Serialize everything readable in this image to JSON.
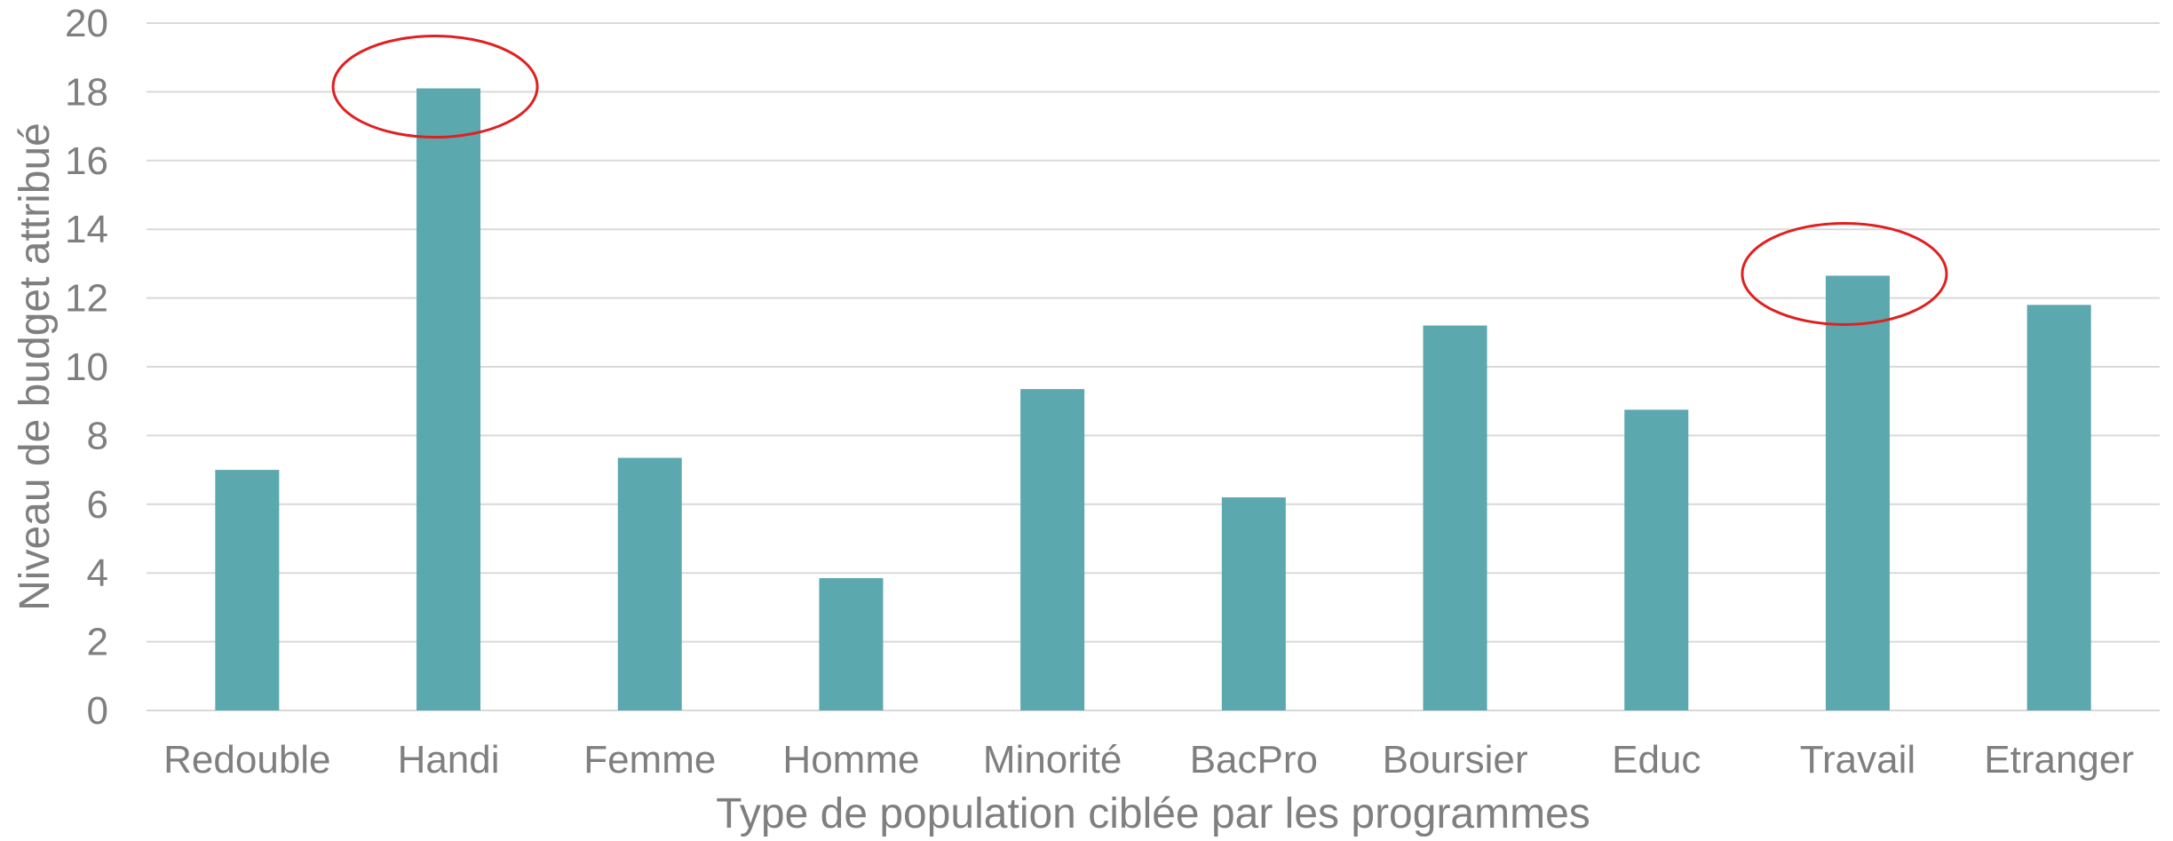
{
  "chart_data": {
    "type": "bar",
    "title": "",
    "xlabel": "Type de population ciblée par les programmes",
    "ylabel": "Niveau de budget attribué",
    "ylim": [
      0,
      20
    ],
    "yticks": [
      0,
      2,
      4,
      6,
      8,
      10,
      12,
      14,
      16,
      18,
      20
    ],
    "grid": true,
    "categories": [
      "Redouble",
      "Handi",
      "Femme",
      "Homme",
      "Minorité",
      "BacPro",
      "Boursier",
      "Educ",
      "Travail",
      "Etranger"
    ],
    "values": [
      7.0,
      18.1,
      7.35,
      3.85,
      9.35,
      6.2,
      11.2,
      8.75,
      12.65,
      11.8
    ],
    "bar_color": "#5ba8af",
    "highlighted_categories": [
      "Handi",
      "Travail"
    ],
    "highlight_color": "#e02020"
  }
}
